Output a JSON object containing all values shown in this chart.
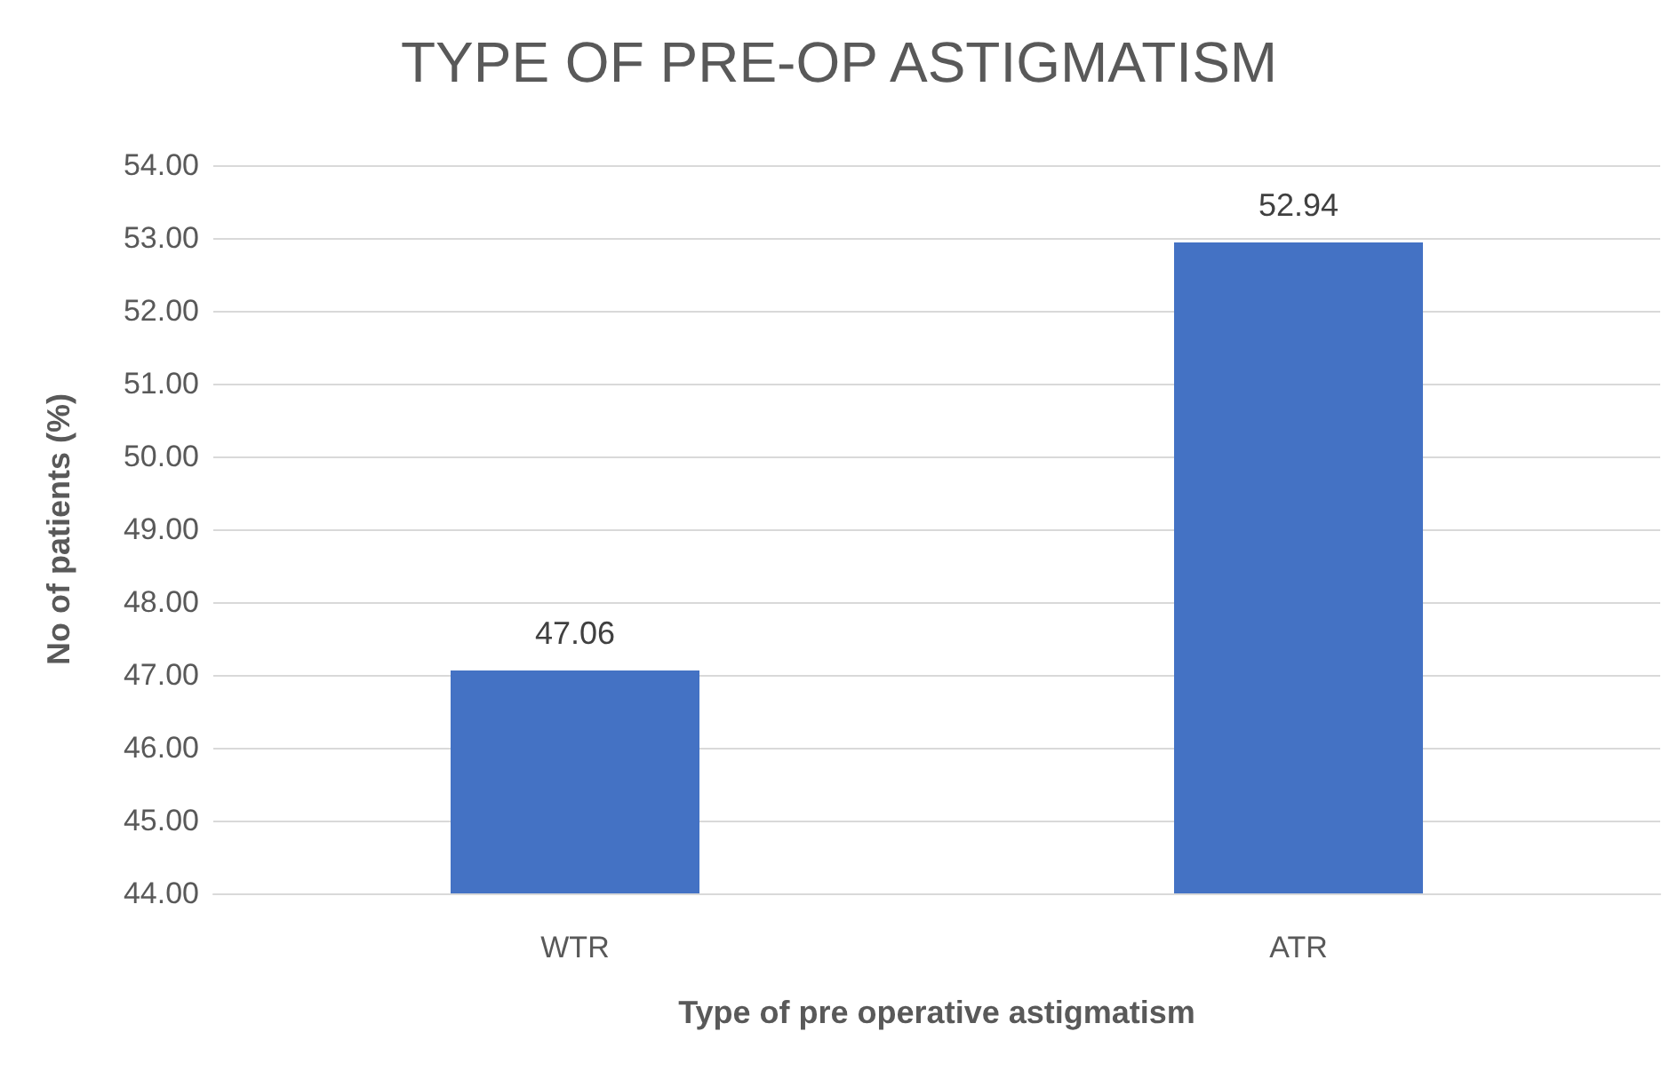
{
  "chart_data": {
    "type": "bar",
    "title": "TYPE OF PRE-OP ASTIGMATISM",
    "xlabel": "Type of pre operative astigmatism",
    "ylabel": "No of patients (%)",
    "categories": [
      "WTR",
      "ATR"
    ],
    "values": [
      47.06,
      52.94
    ],
    "color": "#4472c4",
    "ylim": [
      44,
      54
    ],
    "yticks": [
      {
        "value": 44,
        "label": "44.00"
      },
      {
        "value": 45,
        "label": "45.00"
      },
      {
        "value": 46,
        "label": "46.00"
      },
      {
        "value": 47,
        "label": "47.00"
      },
      {
        "value": 48,
        "label": "48.00"
      },
      {
        "value": 49,
        "label": "49.00"
      },
      {
        "value": 50,
        "label": "50.00"
      },
      {
        "value": 51,
        "label": "51.00"
      },
      {
        "value": 52,
        "label": "52.00"
      },
      {
        "value": 53,
        "label": "53.00"
      },
      {
        "value": 54,
        "label": "54.00"
      }
    ],
    "grid": true,
    "data_labels": true
  }
}
